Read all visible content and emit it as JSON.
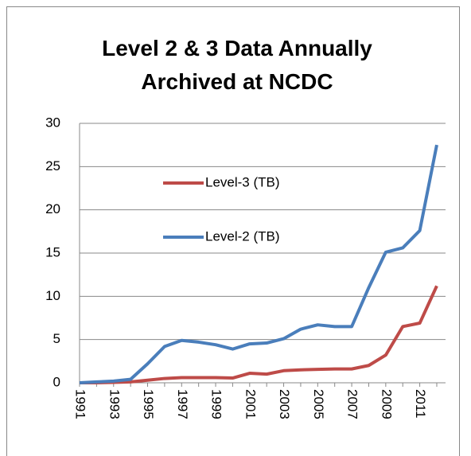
{
  "chart_data": {
    "type": "line",
    "title": "Level 2 & 3 Data Annually Archived at NCDC",
    "categories": [
      "1991",
      null,
      "1993",
      null,
      "1995",
      null,
      "1997",
      null,
      "1999",
      null,
      "2001",
      null,
      "2003",
      null,
      "2005",
      null,
      "2007",
      null,
      "2009",
      null,
      "2011",
      null
    ],
    "series": [
      {
        "name": "Level-3 (TB)",
        "color": "#be4b48",
        "values": [
          0,
          0,
          0.05,
          0.1,
          0.3,
          0.5,
          0.6,
          0.6,
          0.6,
          0.55,
          1.1,
          1.0,
          1.4,
          1.5,
          1.55,
          1.6,
          1.6,
          2.0,
          3.2,
          6.5,
          6.9,
          11.2
        ]
      },
      {
        "name": "Level-2 (TB)",
        "color": "#4a7ebb",
        "values": [
          0,
          0.1,
          0.2,
          0.4,
          2.2,
          4.2,
          4.9,
          4.7,
          4.4,
          3.9,
          4.5,
          4.6,
          5.1,
          6.2,
          6.7,
          6.5,
          6.5,
          11.0,
          15.1,
          15.6,
          17.6,
          27.5
        ]
      }
    ],
    "ylim": [
      0,
      30
    ],
    "yticks": [
      0,
      5,
      10,
      15,
      20,
      25,
      30
    ],
    "grid": true
  }
}
